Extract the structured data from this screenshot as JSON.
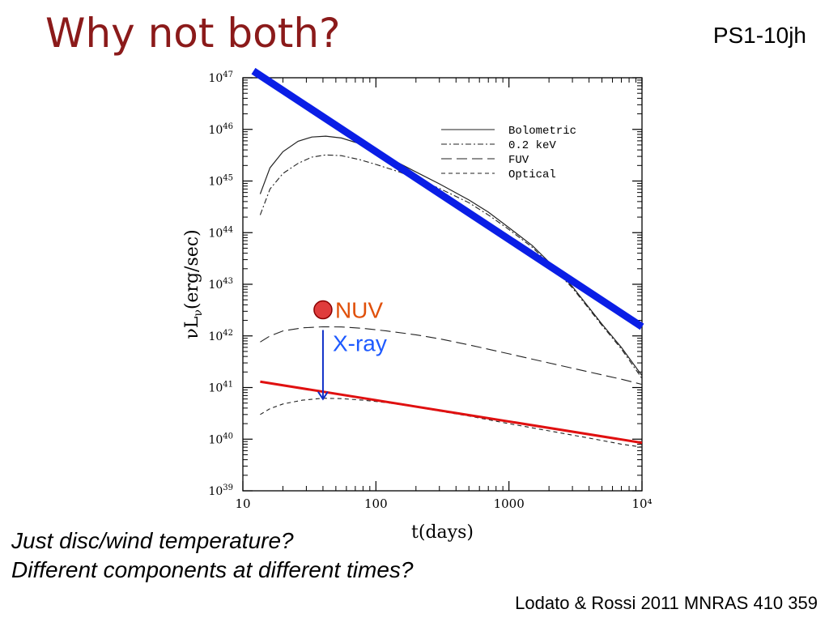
{
  "slide": {
    "title": "Why not both?",
    "tag": "PS1-10jh",
    "notes": [
      "Just disc/wind temperature?",
      "Different components at different times?"
    ],
    "citation": "Lodato & Rossi 2011 MNRAS 410 359"
  },
  "chart_data": {
    "type": "line",
    "xscale": "log",
    "yscale": "log",
    "xlim": [
      10,
      10000
    ],
    "ylim": [
      1e+39,
      1e+47
    ],
    "xlabel": "t(days)",
    "ylabel_main": "νL",
    "ylabel_sub": "ν",
    "ylabel_unit": "(erg/sec)",
    "x_ticks": [
      {
        "value": 10,
        "label": "10"
      },
      {
        "value": 100,
        "label": "100"
      },
      {
        "value": 1000,
        "label": "1000"
      },
      {
        "value": 10000,
        "label": "10⁴"
      }
    ],
    "y_ticks": [
      {
        "value": 1e+39,
        "base": "10",
        "exp": "39"
      },
      {
        "value": 1e+40,
        "base": "10",
        "exp": "40"
      },
      {
        "value": 1e+41,
        "base": "10",
        "exp": "41"
      },
      {
        "value": 1e+42,
        "base": "10",
        "exp": "42"
      },
      {
        "value": 1e+43,
        "base": "10",
        "exp": "43"
      },
      {
        "value": 1e+44,
        "base": "10",
        "exp": "44"
      },
      {
        "value": 1e+45,
        "base": "10",
        "exp": "45"
      },
      {
        "value": 1e+46,
        "base": "10",
        "exp": "46"
      },
      {
        "value": 1e+47,
        "base": "10",
        "exp": "47"
      }
    ],
    "legend_position": "top-right",
    "series": [
      {
        "name": "Bolometric",
        "color": "#222222",
        "width": 1.2,
        "dash": "",
        "points": [
          [
            13.5,
            5.6e+44
          ],
          [
            16,
            1.8e+45
          ],
          [
            20,
            3.7e+45
          ],
          [
            26,
            5.9e+45
          ],
          [
            33,
            7.1e+45
          ],
          [
            42,
            7.4e+45
          ],
          [
            55,
            6.8e+45
          ],
          [
            75,
            5.3e+45
          ],
          [
            100,
            3.6e+45
          ],
          [
            150,
            2.2e+45
          ],
          [
            200,
            1.5e+45
          ],
          [
            300,
            8.8e+44
          ],
          [
            500,
            4.3e+44
          ],
          [
            700,
            2.5e+44
          ],
          [
            1000,
            1.25e+44
          ],
          [
            1500,
            5.6e+43
          ],
          [
            2000,
            2.7e+43
          ],
          [
            3000,
            9e+42
          ],
          [
            5000,
            1.7e+42
          ],
          [
            7000,
            6e+41
          ],
          [
            10000,
            1.7e+41
          ]
        ]
      },
      {
        "name": "0.2 keV",
        "color": "#222222",
        "width": 1.1,
        "dash": "7 3 2 3",
        "points": [
          [
            13.5,
            2.2e+44
          ],
          [
            16,
            7e+44
          ],
          [
            20,
            1.4e+45
          ],
          [
            26,
            2.2e+45
          ],
          [
            33,
            2.9e+45
          ],
          [
            42,
            3.2e+45
          ],
          [
            55,
            3.1e+45
          ],
          [
            75,
            2.6e+45
          ],
          [
            100,
            2.1e+45
          ],
          [
            150,
            1.5e+45
          ],
          [
            200,
            1.1e+45
          ],
          [
            300,
            7.2e+44
          ],
          [
            500,
            3.8e+44
          ],
          [
            700,
            2.2e+44
          ],
          [
            1000,
            1.15e+44
          ],
          [
            1500,
            5.2e+43
          ],
          [
            2000,
            2.5e+43
          ],
          [
            3000,
            8.5e+42
          ],
          [
            5000,
            1.6e+42
          ],
          [
            7000,
            5.6e+41
          ],
          [
            10000,
            1.5e+41
          ]
        ]
      },
      {
        "name": "FUV",
        "color": "#222222",
        "width": 1.1,
        "dash": "13 6",
        "points": [
          [
            13.5,
            7.6e+41
          ],
          [
            16,
            1e+42
          ],
          [
            20,
            1.25e+42
          ],
          [
            28,
            1.43e+42
          ],
          [
            40,
            1.5e+42
          ],
          [
            55,
            1.49e+42
          ],
          [
            80,
            1.4e+42
          ],
          [
            120,
            1.25e+42
          ],
          [
            200,
            1.05e+42
          ],
          [
            300,
            8.8e+41
          ],
          [
            500,
            6.7e+41
          ],
          [
            1000,
            4.5e+41
          ],
          [
            2000,
            3e+41
          ],
          [
            4000,
            2e+41
          ],
          [
            7000,
            1.45e+41
          ],
          [
            10000,
            1.15e+41
          ]
        ]
      },
      {
        "name": "Optical",
        "color": "#222222",
        "width": 1.1,
        "dash": "5 4",
        "points": [
          [
            13.5,
            3e+40
          ],
          [
            16,
            3.9e+40
          ],
          [
            20,
            4.8e+40
          ],
          [
            28,
            5.7e+40
          ],
          [
            40,
            6.2e+40
          ],
          [
            55,
            6.1e+40
          ],
          [
            80,
            5.7e+40
          ],
          [
            120,
            5.1e+40
          ],
          [
            200,
            4.2e+40
          ],
          [
            300,
            3.5e+40
          ],
          [
            500,
            2.8e+40
          ],
          [
            1000,
            2e+40
          ],
          [
            2000,
            1.45e+40
          ],
          [
            4000,
            1.05e+40
          ],
          [
            7000,
            8e+39
          ],
          [
            10000,
            7e+39
          ]
        ]
      }
    ],
    "power_laws": [
      {
        "color": "#0a1ee6",
        "width": 9,
        "points": [
          [
            12,
            1.35e+47
          ],
          [
            10000,
            1.5e+42
          ]
        ]
      },
      {
        "color": "#e01010",
        "width": 3,
        "points": [
          [
            13.5,
            1.3e+41
          ],
          [
            10000,
            8.5e+39
          ]
        ]
      }
    ],
    "markers": [
      {
        "label": "NUV",
        "x": 40,
        "y": 3.2e+42,
        "fill": "#e03c3c",
        "stroke": "#8b0000",
        "label_color": "#e0500a"
      }
    ],
    "upper_limits": [
      {
        "label": "X-ray",
        "x": 40,
        "y_top": 1.3e+42,
        "y_bottom": 6e+40,
        "color": "#1030c8",
        "label_color": "#1e5aff"
      }
    ]
  }
}
